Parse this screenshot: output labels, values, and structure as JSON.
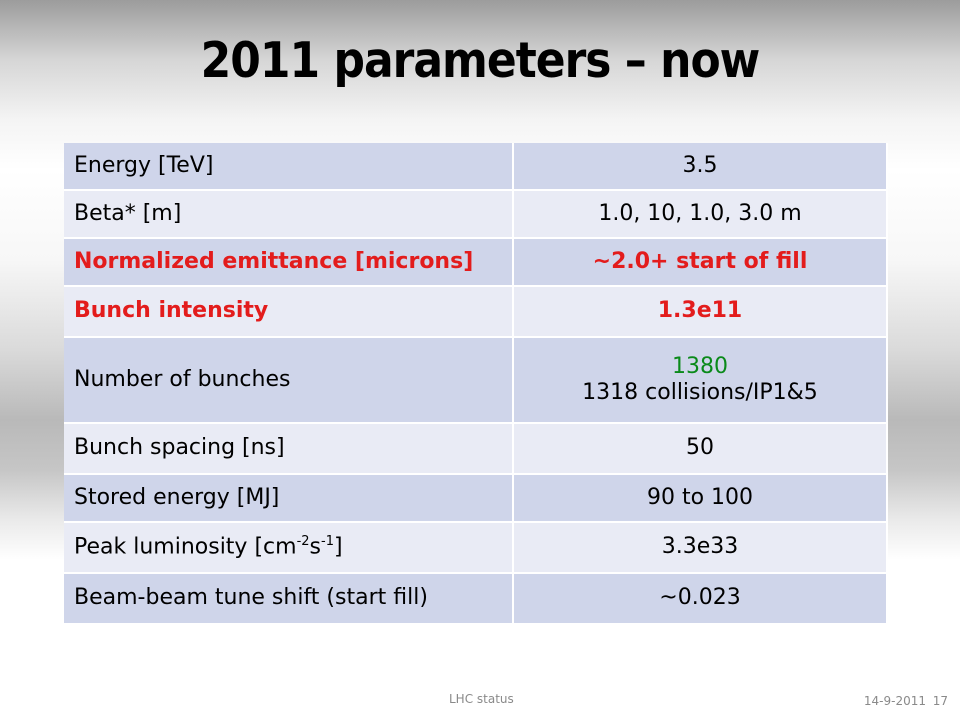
{
  "slide": {
    "title": "2011 parameters – now"
  },
  "table": {
    "rows": [
      {
        "label": "Energy [TeV]",
        "value": "3.5"
      },
      {
        "label": "Beta* [m]",
        "value": "1.0, 10, 1.0, 3.0  m"
      },
      {
        "label": "Normalized emittance [microns]",
        "value": "~2.0+  start of fill"
      },
      {
        "label": "Bunch intensity",
        "value": "1.3e11"
      },
      {
        "label": "Number of bunches",
        "value_line1": "1380",
        "value_line2": "1318 collisions/IP1&5"
      },
      {
        "label": "Bunch spacing [ns]",
        "value": "50"
      },
      {
        "label": "Stored energy [MJ]",
        "value": "90 to 100"
      },
      {
        "label_prefix": "Peak luminosity [cm",
        "label_sup1": "-2",
        "label_mid": "s",
        "label_sup2": "-1",
        "label_suffix": "]",
        "value": "3.3e33"
      },
      {
        "label": "Beam-beam tune shift (start fill)",
        "value": "~0.023"
      }
    ]
  },
  "footer": {
    "center": "LHC status",
    "date": "14-9-2011",
    "page": "17"
  },
  "colors": {
    "row_dark": "#cfd5ea",
    "row_light": "#e9ebf5",
    "highlight_red": "#e31c1c",
    "highlight_green": "#0a8a1a"
  }
}
